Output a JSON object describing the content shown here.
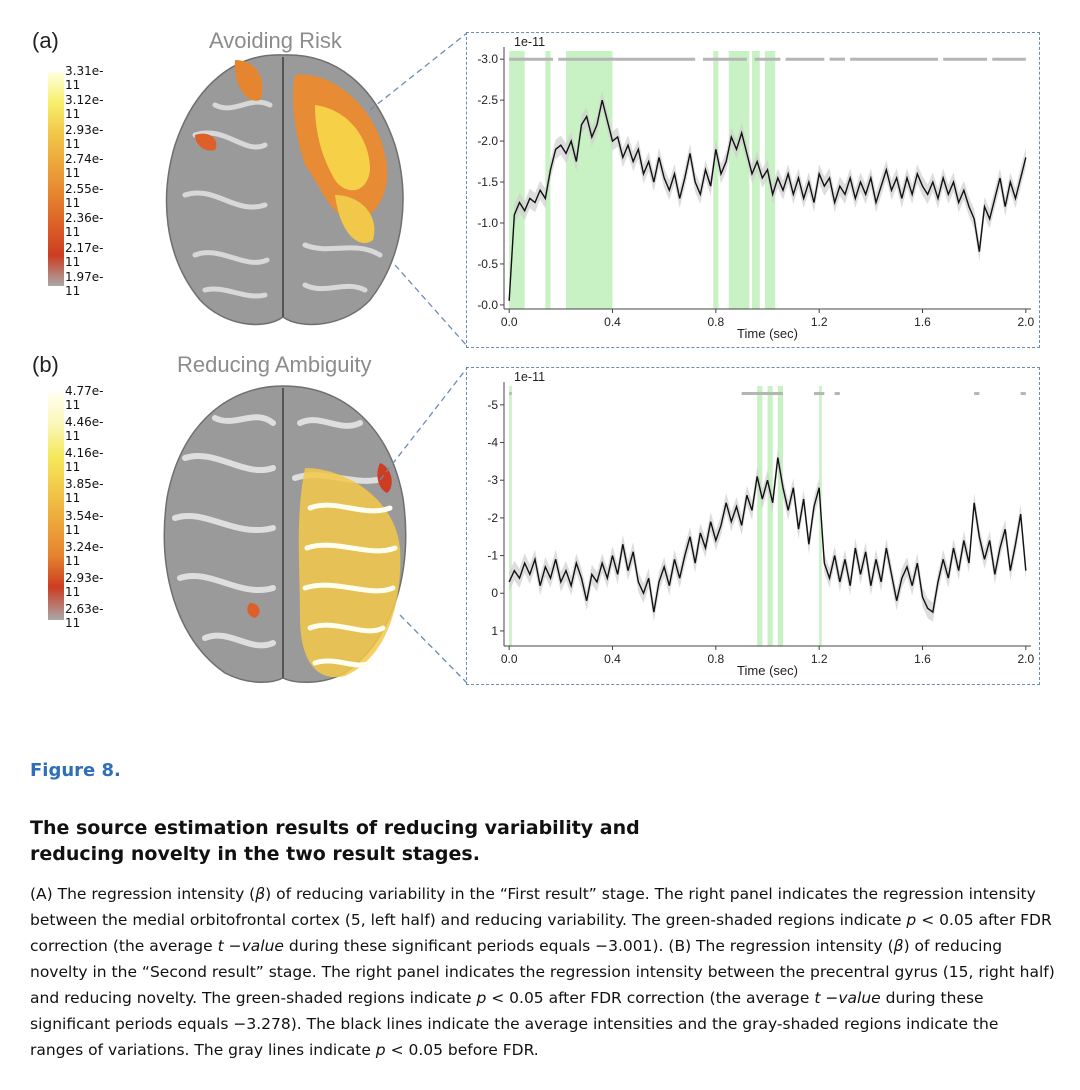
{
  "panel_a": {
    "letter": "(a)",
    "title": "Avoiding Risk",
    "colorbar": [
      "3.31e-11",
      "3.12e-11",
      "2.93e-11",
      "2.74e-11",
      "2.55e-11",
      "2.36e-11",
      "2.17e-11",
      "1.97e-11"
    ],
    "colors": [
      "#ffffe0",
      "#f7f06a",
      "#f2c84a",
      "#eda63a",
      "#e5852f",
      "#dc6027",
      "#cc3d22",
      "#a8a8a8"
    ]
  },
  "panel_b": {
    "letter": "(b)",
    "title": "Reducing Ambiguity",
    "colorbar": [
      "4.77e-11",
      "4.46e-11",
      "4.16e-11",
      "3.85e-11",
      "3.54e-11",
      "3.24e-11",
      "2.93e-11",
      "2.63e-11"
    ],
    "colors": [
      "#fffff0",
      "#fbf7b8",
      "#f5e85a",
      "#f2c84a",
      "#eda63a",
      "#e5852f",
      "#cc3d22",
      "#a8a8a8"
    ]
  },
  "chart_data": [
    {
      "type": "line",
      "scale_label": "1e-11",
      "xlabel": "Time (sec)",
      "xticks": [
        "0.0",
        "0.4",
        "0.8",
        "1.2",
        "1.6",
        "2.0"
      ],
      "xlim": [
        -0.02,
        2.02
      ],
      "ylim": [
        -3.1,
        0.05
      ],
      "yticks": [
        {
          "v": -3.0,
          "label": "-3.0"
        },
        {
          "v": -2.5,
          "label": "-2.5"
        },
        {
          "v": -2.0,
          "label": "-2.0"
        },
        {
          "v": -1.5,
          "label": "-1.5"
        },
        {
          "v": -1.0,
          "label": "-1.0"
        },
        {
          "v": -0.5,
          "label": "-0.5"
        },
        {
          "v": 0.0,
          "label": "-0.0"
        }
      ],
      "inverted": true,
      "significant_fdr": [
        [
          0.0,
          0.06
        ],
        [
          0.14,
          0.16
        ],
        [
          0.22,
          0.4
        ],
        [
          0.79,
          0.81
        ],
        [
          0.85,
          0.93
        ],
        [
          0.94,
          0.97
        ],
        [
          0.99,
          1.03
        ]
      ],
      "gray_p05_level": -3.0,
      "gray_p05": [
        [
          0.0,
          0.17
        ],
        [
          0.19,
          0.72
        ],
        [
          0.75,
          0.92
        ],
        [
          0.95,
          1.05
        ],
        [
          1.07,
          1.22
        ],
        [
          1.24,
          1.3
        ],
        [
          1.32,
          1.66
        ],
        [
          1.68,
          1.85
        ],
        [
          1.87,
          2.0
        ]
      ],
      "series_mean": [
        [
          0.0,
          -0.05
        ],
        [
          0.02,
          -1.1
        ],
        [
          0.04,
          -1.25
        ],
        [
          0.06,
          -1.15
        ],
        [
          0.08,
          -1.3
        ],
        [
          0.1,
          -1.25
        ],
        [
          0.12,
          -1.4
        ],
        [
          0.14,
          -1.3
        ],
        [
          0.16,
          -1.65
        ],
        [
          0.18,
          -1.9
        ],
        [
          0.2,
          -1.95
        ],
        [
          0.22,
          -1.85
        ],
        [
          0.24,
          -2.0
        ],
        [
          0.26,
          -1.75
        ],
        [
          0.28,
          -2.2
        ],
        [
          0.3,
          -2.3
        ],
        [
          0.32,
          -2.05
        ],
        [
          0.34,
          -2.2
        ],
        [
          0.36,
          -2.5
        ],
        [
          0.38,
          -2.25
        ],
        [
          0.4,
          -2.0
        ],
        [
          0.42,
          -2.05
        ],
        [
          0.44,
          -1.8
        ],
        [
          0.46,
          -1.95
        ],
        [
          0.48,
          -1.75
        ],
        [
          0.5,
          -1.9
        ],
        [
          0.52,
          -1.6
        ],
        [
          0.54,
          -1.75
        ],
        [
          0.56,
          -1.5
        ],
        [
          0.58,
          -1.8
        ],
        [
          0.6,
          -1.55
        ],
        [
          0.62,
          -1.4
        ],
        [
          0.64,
          -1.6
        ],
        [
          0.66,
          -1.3
        ],
        [
          0.68,
          -1.55
        ],
        [
          0.7,
          -1.85
        ],
        [
          0.72,
          -1.5
        ],
        [
          0.74,
          -1.35
        ],
        [
          0.76,
          -1.65
        ],
        [
          0.78,
          -1.45
        ],
        [
          0.8,
          -1.9
        ],
        [
          0.82,
          -1.6
        ],
        [
          0.84,
          -1.75
        ],
        [
          0.86,
          -2.05
        ],
        [
          0.88,
          -1.9
        ],
        [
          0.9,
          -2.1
        ],
        [
          0.92,
          -1.85
        ],
        [
          0.94,
          -1.6
        ],
        [
          0.96,
          -1.75
        ],
        [
          0.98,
          -1.55
        ],
        [
          1.0,
          -1.65
        ],
        [
          1.02,
          -1.35
        ],
        [
          1.04,
          -1.55
        ],
        [
          1.06,
          -1.4
        ],
        [
          1.08,
          -1.6
        ],
        [
          1.1,
          -1.35
        ],
        [
          1.12,
          -1.55
        ],
        [
          1.14,
          -1.3
        ],
        [
          1.16,
          -1.5
        ],
        [
          1.18,
          -1.25
        ],
        [
          1.2,
          -1.6
        ],
        [
          1.22,
          -1.45
        ],
        [
          1.24,
          -1.55
        ],
        [
          1.26,
          -1.25
        ],
        [
          1.28,
          -1.45
        ],
        [
          1.3,
          -1.35
        ],
        [
          1.32,
          -1.55
        ],
        [
          1.34,
          -1.3
        ],
        [
          1.36,
          -1.5
        ],
        [
          1.38,
          -1.35
        ],
        [
          1.4,
          -1.55
        ],
        [
          1.42,
          -1.25
        ],
        [
          1.44,
          -1.45
        ],
        [
          1.46,
          -1.65
        ],
        [
          1.48,
          -1.4
        ],
        [
          1.5,
          -1.55
        ],
        [
          1.52,
          -1.3
        ],
        [
          1.54,
          -1.55
        ],
        [
          1.56,
          -1.35
        ],
        [
          1.58,
          -1.6
        ],
        [
          1.6,
          -1.45
        ],
        [
          1.62,
          -1.35
        ],
        [
          1.64,
          -1.5
        ],
        [
          1.66,
          -1.3
        ],
        [
          1.68,
          -1.55
        ],
        [
          1.7,
          -1.35
        ],
        [
          1.72,
          -1.5
        ],
        [
          1.74,
          -1.25
        ],
        [
          1.76,
          -1.4
        ],
        [
          1.78,
          -1.2
        ],
        [
          1.8,
          -1.05
        ],
        [
          1.82,
          -0.65
        ],
        [
          1.84,
          -1.2
        ],
        [
          1.86,
          -1.05
        ],
        [
          1.88,
          -1.3
        ],
        [
          1.9,
          -1.55
        ],
        [
          1.92,
          -1.2
        ],
        [
          1.94,
          -1.5
        ],
        [
          1.96,
          -1.3
        ],
        [
          1.98,
          -1.55
        ],
        [
          2.0,
          -1.8
        ]
      ]
    },
    {
      "type": "line",
      "scale_label": "1e-11",
      "xlabel": "Time (sec)",
      "xticks": [
        "0.0",
        "0.4",
        "0.8",
        "1.2",
        "1.6",
        "2.0"
      ],
      "xlim": [
        -0.02,
        2.02
      ],
      "ylim": [
        -5.5,
        1.4
      ],
      "yticks": [
        {
          "v": -5,
          "label": "-5"
        },
        {
          "v": -4,
          "label": "-4"
        },
        {
          "v": -3,
          "label": "-3"
        },
        {
          "v": -2,
          "label": "-2"
        },
        {
          "v": -1,
          "label": "-1"
        },
        {
          "v": 0,
          "label": "0"
        },
        {
          "v": 1,
          "label": "1"
        }
      ],
      "inverted": true,
      "significant_fdr": [
        [
          0.0,
          0.01
        ],
        [
          0.96,
          0.98
        ],
        [
          1.0,
          1.02
        ],
        [
          1.04,
          1.06
        ],
        [
          1.2,
          1.21
        ]
      ],
      "gray_p05_level": -5.3,
      "gray_p05": [
        [
          0.0,
          0.01
        ],
        [
          0.9,
          1.06
        ],
        [
          1.18,
          1.22
        ],
        [
          1.26,
          1.28
        ],
        [
          1.8,
          1.82
        ],
        [
          1.98,
          2.0
        ]
      ],
      "series_mean": [
        [
          0.0,
          -0.3
        ],
        [
          0.02,
          -0.6
        ],
        [
          0.04,
          -0.4
        ],
        [
          0.06,
          -0.8
        ],
        [
          0.08,
          -0.5
        ],
        [
          0.1,
          -0.9
        ],
        [
          0.12,
          -0.2
        ],
        [
          0.14,
          -0.7
        ],
        [
          0.16,
          -0.4
        ],
        [
          0.18,
          -0.9
        ],
        [
          0.2,
          -0.3
        ],
        [
          0.22,
          -0.6
        ],
        [
          0.24,
          -0.2
        ],
        [
          0.26,
          -0.8
        ],
        [
          0.28,
          -0.4
        ],
        [
          0.3,
          0.2
        ],
        [
          0.32,
          -0.5
        ],
        [
          0.34,
          -0.3
        ],
        [
          0.36,
          -0.8
        ],
        [
          0.38,
          -0.4
        ],
        [
          0.4,
          -1.0
        ],
        [
          0.42,
          -0.5
        ],
        [
          0.44,
          -1.3
        ],
        [
          0.46,
          -0.6
        ],
        [
          0.48,
          -1.1
        ],
        [
          0.5,
          -0.3
        ],
        [
          0.52,
          0.0
        ],
        [
          0.54,
          -0.4
        ],
        [
          0.56,
          0.5
        ],
        [
          0.58,
          -0.3
        ],
        [
          0.6,
          -0.7
        ],
        [
          0.62,
          -0.2
        ],
        [
          0.64,
          -0.9
        ],
        [
          0.66,
          -0.4
        ],
        [
          0.68,
          -1.0
        ],
        [
          0.7,
          -1.5
        ],
        [
          0.72,
          -0.8
        ],
        [
          0.74,
          -1.6
        ],
        [
          0.76,
          -1.2
        ],
        [
          0.78,
          -1.9
        ],
        [
          0.8,
          -1.4
        ],
        [
          0.82,
          -1.8
        ],
        [
          0.84,
          -2.4
        ],
        [
          0.86,
          -1.9
        ],
        [
          0.88,
          -2.3
        ],
        [
          0.9,
          -1.8
        ],
        [
          0.92,
          -2.6
        ],
        [
          0.94,
          -2.2
        ],
        [
          0.96,
          -3.1
        ],
        [
          0.98,
          -2.5
        ],
        [
          1.0,
          -3.0
        ],
        [
          1.02,
          -2.4
        ],
        [
          1.04,
          -3.6
        ],
        [
          1.06,
          -2.8
        ],
        [
          1.08,
          -2.2
        ],
        [
          1.1,
          -2.8
        ],
        [
          1.12,
          -1.7
        ],
        [
          1.14,
          -2.5
        ],
        [
          1.16,
          -1.3
        ],
        [
          1.18,
          -2.3
        ],
        [
          1.2,
          -2.8
        ],
        [
          1.22,
          -0.8
        ],
        [
          1.24,
          -0.4
        ],
        [
          1.26,
          -1.0
        ],
        [
          1.28,
          -0.3
        ],
        [
          1.3,
          -0.9
        ],
        [
          1.32,
          -0.2
        ],
        [
          1.34,
          -1.2
        ],
        [
          1.36,
          -0.5
        ],
        [
          1.38,
          -1.1
        ],
        [
          1.4,
          -0.2
        ],
        [
          1.42,
          -0.9
        ],
        [
          1.44,
          -0.3
        ],
        [
          1.46,
          -1.2
        ],
        [
          1.48,
          -0.5
        ],
        [
          1.5,
          0.2
        ],
        [
          1.52,
          -0.4
        ],
        [
          1.54,
          -0.7
        ],
        [
          1.56,
          -0.2
        ],
        [
          1.58,
          -0.8
        ],
        [
          1.6,
          0.1
        ],
        [
          1.62,
          0.4
        ],
        [
          1.64,
          0.5
        ],
        [
          1.66,
          -0.3
        ],
        [
          1.68,
          -0.9
        ],
        [
          1.7,
          -0.4
        ],
        [
          1.72,
          -1.2
        ],
        [
          1.74,
          -0.6
        ],
        [
          1.76,
          -1.4
        ],
        [
          1.78,
          -0.8
        ],
        [
          1.8,
          -2.4
        ],
        [
          1.82,
          -1.5
        ],
        [
          1.84,
          -0.9
        ],
        [
          1.86,
          -1.4
        ],
        [
          1.88,
          -0.5
        ],
        [
          1.9,
          -1.2
        ],
        [
          1.92,
          -1.7
        ],
        [
          1.94,
          -0.6
        ],
        [
          1.96,
          -1.3
        ],
        [
          1.98,
          -2.1
        ],
        [
          2.0,
          -0.6
        ]
      ]
    }
  ],
  "figure": {
    "label": "Figure 8.",
    "title": "The source estimation results of reducing variability and reducing novelty in the two result stages.",
    "caption": {
      "s1": "(A) The regression intensity (",
      "beta1": "β",
      "s2": ") of reducing variability in the “First result” stage. The right panel indicates the regression intensity between the medial orbitofrontal cortex (5, left half) and reducing variability. The green-shaded regions indicate ",
      "p1": "p",
      "s3": " < 0.05 after FDR correction (the average ",
      "t1": "t −value",
      "s4": " during these significant periods equals −3.001). (B) The regression intensity (",
      "beta2": "β",
      "s5": ") of reducing novelty in the “Second result” stage. The right panel indicates the regression intensity between the precentral gyrus (15, right half) and reducing novelty. The green-shaded regions indicate ",
      "p2": "p",
      "s6": " < 0.05 after FDR correction (the average ",
      "t2": "t −value",
      "s7": " during these significant periods equals −3.278). The black lines indicate the average intensities and the gray-shaded regions indicate the ranges of variations. The gray lines indicate ",
      "p3": "p",
      "s8": " < 0.05 before FDR."
    }
  }
}
